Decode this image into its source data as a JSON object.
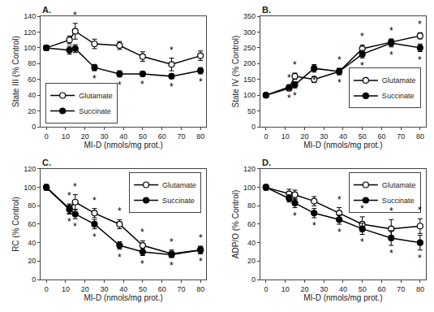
{
  "chart_data": [
    {
      "type": "line",
      "title": "A.",
      "x_label": "MI-D (nmols/mg prot.)",
      "y_label": "State III (% Control)",
      "x": [
        0,
        12,
        15,
        25,
        38,
        50,
        65,
        80
      ],
      "xlim": [
        -3,
        83
      ],
      "xticks": [
        0,
        10,
        20,
        30,
        40,
        50,
        60,
        70,
        80
      ],
      "ylim": [
        0,
        140
      ],
      "yticks": [
        0,
        20,
        40,
        60,
        80,
        100,
        120,
        140
      ],
      "grid": false,
      "legend": "lower left",
      "series": [
        {
          "name": "Glutamate",
          "color": "#000000",
          "marker": "open circle",
          "values": [
            100,
            110,
            121,
            105,
            103,
            89,
            79,
            90
          ],
          "errors": [
            3,
            5,
            10,
            6,
            5,
            6,
            8,
            6
          ]
        },
        {
          "name": "Succinate",
          "color": "#000000",
          "marker": "filled circle",
          "values": [
            100,
            97,
            99,
            75,
            67,
            67,
            64,
            71
          ],
          "errors": [
            3,
            5,
            5,
            4,
            4,
            3,
            3,
            4
          ]
        }
      ],
      "annotations": [
        {
          "text": "*",
          "x": 15,
          "series": "Glutamate",
          "position": "above"
        },
        {
          "text": "*",
          "x": 65,
          "series": "Glutamate",
          "position": "above"
        },
        {
          "text": "*",
          "x": 25,
          "series": "Succinate",
          "position": "below"
        },
        {
          "text": "*",
          "x": 38,
          "series": "Succinate",
          "position": "below"
        },
        {
          "text": "*",
          "x": 50,
          "series": "Succinate",
          "position": "below"
        },
        {
          "text": "*",
          "x": 65,
          "series": "Succinate",
          "position": "below"
        },
        {
          "text": "*",
          "x": 80,
          "series": "Succinate",
          "position": "below"
        }
      ]
    },
    {
      "type": "line",
      "title": "B.",
      "x_label": "MI-D (nmols/mg prot.)",
      "y_label": "State IV (% Control)",
      "x": [
        0,
        12,
        15,
        25,
        38,
        50,
        65,
        80
      ],
      "xlim": [
        -3,
        83
      ],
      "xticks": [
        0,
        10,
        20,
        30,
        40,
        50,
        60,
        70,
        80
      ],
      "ylim": [
        0,
        350
      ],
      "yticks": [
        0,
        50,
        100,
        150,
        200,
        250,
        300,
        350
      ],
      "grid": false,
      "legend": "center right",
      "series": [
        {
          "name": "Glutamate",
          "color": "#000000",
          "marker": "open circle",
          "values": [
            100,
            122,
            160,
            150,
            175,
            247,
            268,
            288
          ],
          "errors": [
            3,
            8,
            10,
            10,
            10,
            12,
            10,
            10
          ]
        },
        {
          "name": "Succinate",
          "color": "#000000",
          "marker": "filled circle",
          "values": [
            100,
            125,
            133,
            185,
            175,
            230,
            265,
            250
          ],
          "errors": [
            3,
            8,
            10,
            12,
            10,
            12,
            12,
            12
          ]
        }
      ],
      "annotations": [
        {
          "text": "*",
          "x": 12,
          "series": "Glutamate",
          "position": "above"
        },
        {
          "text": "*",
          "x": 15,
          "series": "Glutamate",
          "position": "above"
        },
        {
          "text": "*",
          "x": 25,
          "series": "Glutamate",
          "position": "above"
        },
        {
          "text": "*",
          "x": 38,
          "series": "Glutamate",
          "position": "above"
        },
        {
          "text": "*",
          "x": 50,
          "series": "Glutamate",
          "position": "above"
        },
        {
          "text": "*",
          "x": 65,
          "series": "Glutamate",
          "position": "above"
        },
        {
          "text": "*",
          "x": 80,
          "series": "Glutamate",
          "position": "above"
        },
        {
          "text": "*",
          "x": 12,
          "series": "Succinate",
          "position": "below"
        },
        {
          "text": "*",
          "x": 15,
          "series": "Succinate",
          "position": "below"
        },
        {
          "text": "*",
          "x": 25,
          "series": "Succinate",
          "position": "below"
        },
        {
          "text": "*",
          "x": 38,
          "series": "Succinate",
          "position": "below"
        },
        {
          "text": "*",
          "x": 50,
          "series": "Succinate",
          "position": "below"
        },
        {
          "text": "*",
          "x": 65,
          "series": "Succinate",
          "position": "below"
        },
        {
          "text": "*",
          "x": 80,
          "series": "Succinate",
          "position": "below"
        }
      ]
    },
    {
      "type": "line",
      "title": "C.",
      "x_label": "MI-D (nmols/mg prot.)",
      "y_label": "RC (% Control)",
      "x": [
        0,
        12,
        15,
        25,
        38,
        50,
        65,
        80
      ],
      "xlim": [
        -3,
        83
      ],
      "xticks": [
        0,
        10,
        20,
        30,
        40,
        50,
        60,
        70,
        80
      ],
      "ylim": [
        0,
        120
      ],
      "yticks": [
        0,
        20,
        40,
        60,
        80,
        100,
        120
      ],
      "grid": false,
      "legend": "upper right",
      "series": [
        {
          "name": "Glutamate",
          "color": "#000000",
          "marker": "open circle",
          "values": [
            100,
            77,
            84,
            72,
            60,
            37,
            28,
            32
          ],
          "errors": [
            3,
            5,
            8,
            5,
            5,
            5,
            4,
            4
          ]
        },
        {
          "name": "Succinate",
          "color": "#000000",
          "marker": "filled circle",
          "values": [
            100,
            76,
            71,
            60,
            37,
            30,
            27,
            32
          ],
          "errors": [
            3,
            5,
            5,
            5,
            4,
            4,
            3,
            4
          ]
        }
      ],
      "annotations": [
        {
          "text": "*",
          "x": 12,
          "series": "Glutamate",
          "position": "above"
        },
        {
          "text": "*",
          "x": 15,
          "series": "Glutamate",
          "position": "above"
        },
        {
          "text": "*",
          "x": 25,
          "series": "Glutamate",
          "position": "above"
        },
        {
          "text": "*",
          "x": 38,
          "series": "Glutamate",
          "position": "above"
        },
        {
          "text": "*",
          "x": 50,
          "series": "Glutamate",
          "position": "above"
        },
        {
          "text": "*",
          "x": 65,
          "series": "Glutamate",
          "position": "above"
        },
        {
          "text": "*",
          "x": 80,
          "series": "Glutamate",
          "position": "above"
        },
        {
          "text": "*",
          "x": 12,
          "series": "Succinate",
          "position": "below"
        },
        {
          "text": "*",
          "x": 15,
          "series": "Succinate",
          "position": "below"
        },
        {
          "text": "*",
          "x": 25,
          "series": "Succinate",
          "position": "below"
        },
        {
          "text": "*",
          "x": 38,
          "series": "Succinate",
          "position": "below"
        },
        {
          "text": "*",
          "x": 50,
          "series": "Succinate",
          "position": "below"
        },
        {
          "text": "*",
          "x": 65,
          "series": "Succinate",
          "position": "below"
        },
        {
          "text": "*",
          "x": 80,
          "series": "Succinate",
          "position": "below"
        }
      ]
    },
    {
      "type": "line",
      "title": "D.",
      "x_label": "MI-D (nmols/mg prot.)",
      "y_label": "ADP/O (% Control)",
      "x": [
        0,
        12,
        15,
        25,
        38,
        50,
        65,
        80
      ],
      "xlim": [
        -3,
        83
      ],
      "xticks": [
        0,
        10,
        20,
        30,
        40,
        50,
        60,
        70,
        80
      ],
      "ylim": [
        0,
        120
      ],
      "yticks": [
        0,
        20,
        40,
        60,
        80,
        100,
        120
      ],
      "grid": false,
      "legend": "upper right",
      "series": [
        {
          "name": "Glutamate",
          "color": "#000000",
          "marker": "open circle",
          "values": [
            100,
            93,
            92,
            85,
            72,
            60,
            55,
            58
          ],
          "errors": [
            3,
            5,
            5,
            5,
            6,
            8,
            10,
            8
          ]
        },
        {
          "name": "Succinate",
          "color": "#000000",
          "marker": "filled circle",
          "values": [
            100,
            88,
            83,
            72,
            65,
            55,
            45,
            40
          ],
          "errors": [
            3,
            4,
            5,
            5,
            5,
            6,
            8,
            8
          ]
        }
      ],
      "annotations": [
        {
          "text": "*",
          "x": 38,
          "series": "Glutamate",
          "position": "above"
        },
        {
          "text": "*",
          "x": 50,
          "series": "Glutamate",
          "position": "above"
        },
        {
          "text": "*",
          "x": 65,
          "series": "Glutamate",
          "position": "above"
        },
        {
          "text": "*",
          "x": 80,
          "series": "Glutamate",
          "position": "above"
        },
        {
          "text": "*",
          "x": 15,
          "series": "Succinate",
          "position": "below"
        },
        {
          "text": "*",
          "x": 25,
          "series": "Succinate",
          "position": "below"
        },
        {
          "text": "*",
          "x": 38,
          "series": "Succinate",
          "position": "below"
        },
        {
          "text": "*",
          "x": 50,
          "series": "Succinate",
          "position": "below"
        },
        {
          "text": "*",
          "x": 65,
          "series": "Succinate",
          "position": "below"
        },
        {
          "text": "*",
          "x": 80,
          "series": "Succinate",
          "position": "below"
        }
      ]
    }
  ]
}
